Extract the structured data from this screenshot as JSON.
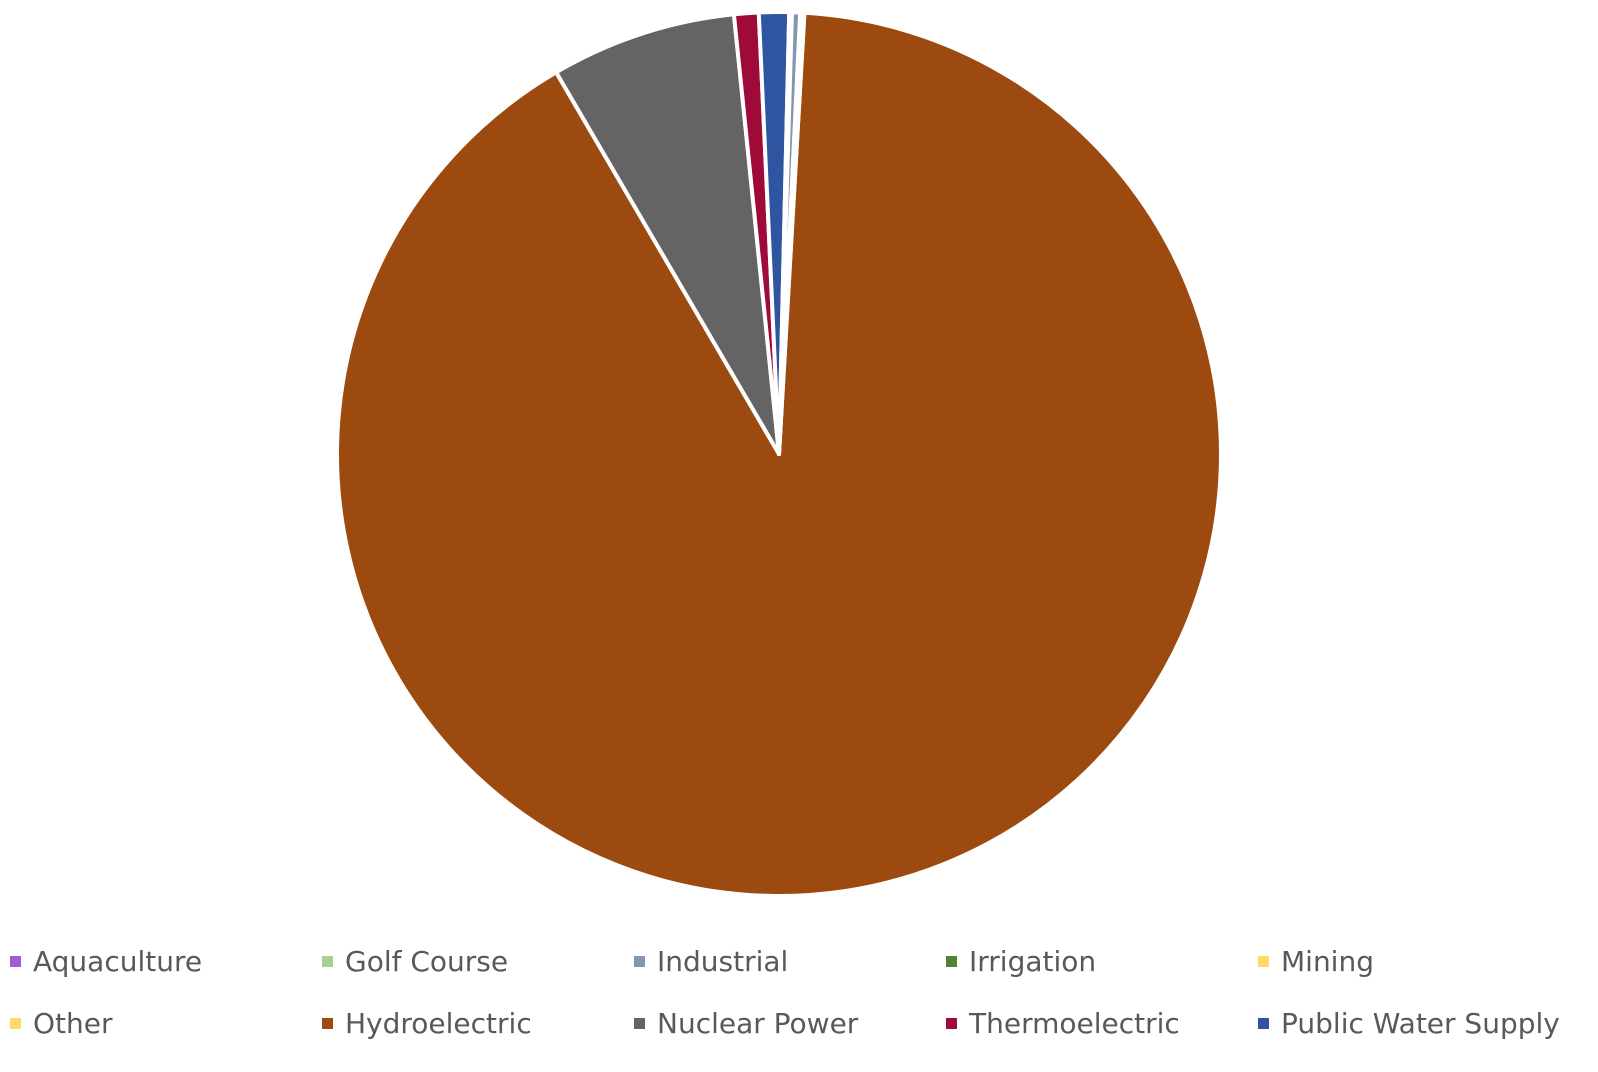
{
  "chart_data": {
    "type": "pie",
    "title": "",
    "slices": [
      {
        "label": "Aquaculture",
        "value": 0.05,
        "color": "#A05CD6"
      },
      {
        "label": "Golf Course",
        "value": 0.05,
        "color": "#A9D18E"
      },
      {
        "label": "Industrial",
        "value": 0.3,
        "color": "#8497B0"
      },
      {
        "label": "Irrigation",
        "value": 0.05,
        "color": "#548235"
      },
      {
        "label": "Mining",
        "value": 0.05,
        "color": "#FFD966"
      },
      {
        "label": "Other",
        "value": 0.05,
        "color": "#FFD966"
      },
      {
        "label": "Hydroelectric",
        "value": 90.9,
        "color": "#9C4A0F"
      },
      {
        "label": "Nuclear Power",
        "value": 6.8,
        "color": "#646464"
      },
      {
        "label": "Thermoelectric",
        "value": 0.9,
        "color": "#9E0B38"
      },
      {
        "label": "Public Water Supply",
        "value": 1.1,
        "color": "#2F55A0"
      }
    ],
    "start_angle_deg": 3.3,
    "direction": "clockwise",
    "legend_position": "bottom"
  }
}
